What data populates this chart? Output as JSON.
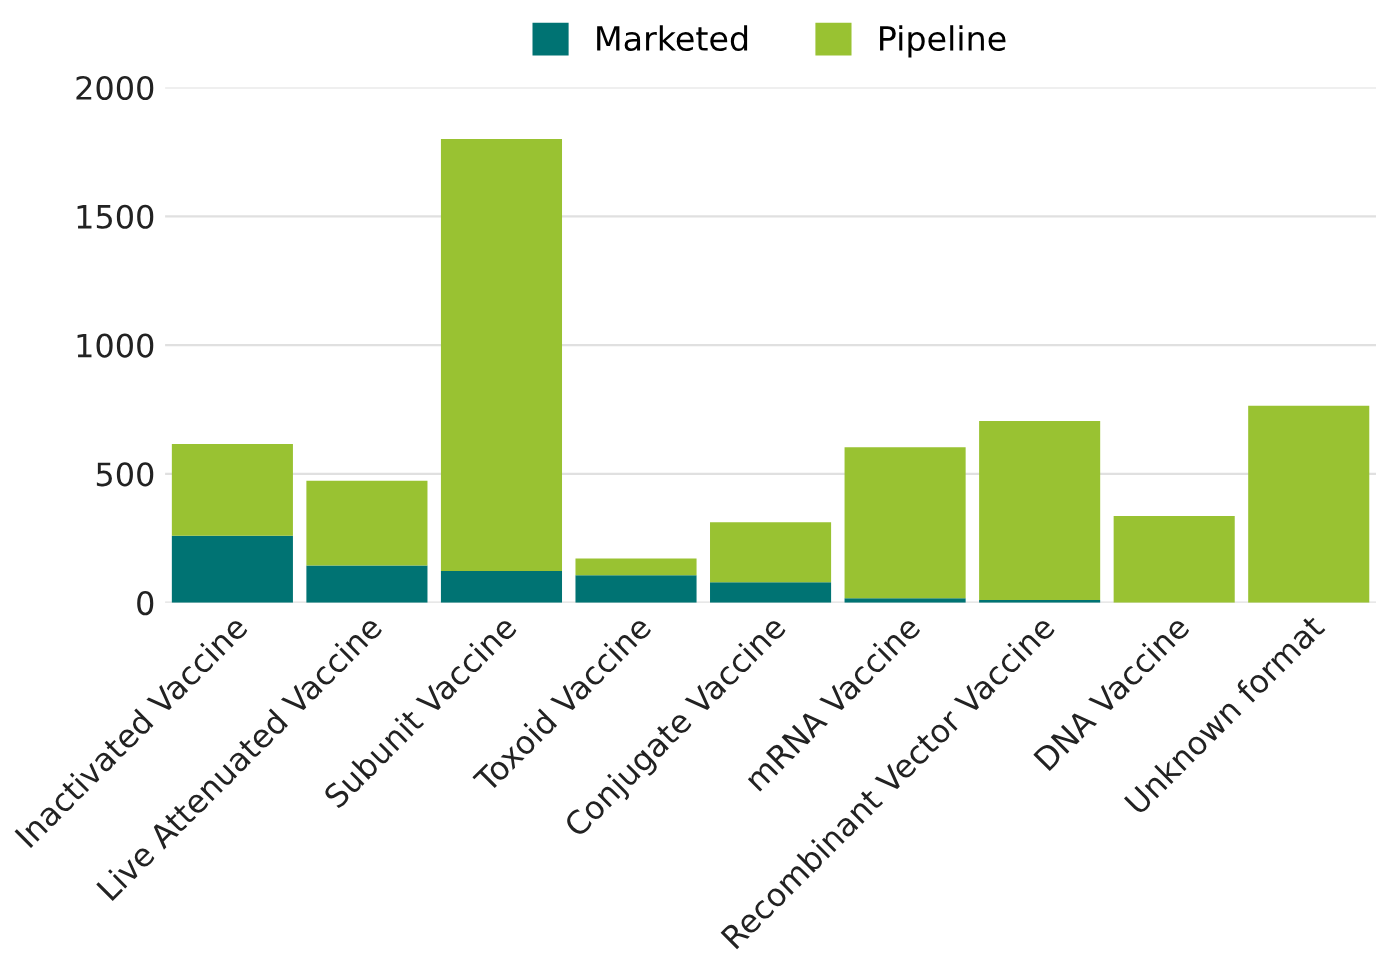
{
  "chart_data": {
    "type": "bar",
    "stacked": true,
    "categories": [
      "Inactivated Vaccine",
      "Live Attenuated Vaccine",
      "Subunit Vaccine",
      "Toxoid Vaccine",
      "Conjugate Vaccine",
      "mRNA Vaccine",
      "Recombinant Vector Vaccine",
      "DNA Vaccine",
      "Unknown format"
    ],
    "series": [
      {
        "name": "Marketed",
        "color": "#007373",
        "values": [
          260,
          144,
          123,
          106,
          79,
          17,
          10,
          0,
          0
        ]
      },
      {
        "name": "Pipeline",
        "color": "#99c232",
        "values": [
          356,
          329,
          1677,
          65,
          233,
          586,
          695,
          336,
          764
        ]
      }
    ],
    "ylim": [
      0,
      2000
    ],
    "yticks": [
      0,
      500,
      1000,
      1500,
      2000
    ],
    "grid": "y",
    "legend": "top"
  }
}
